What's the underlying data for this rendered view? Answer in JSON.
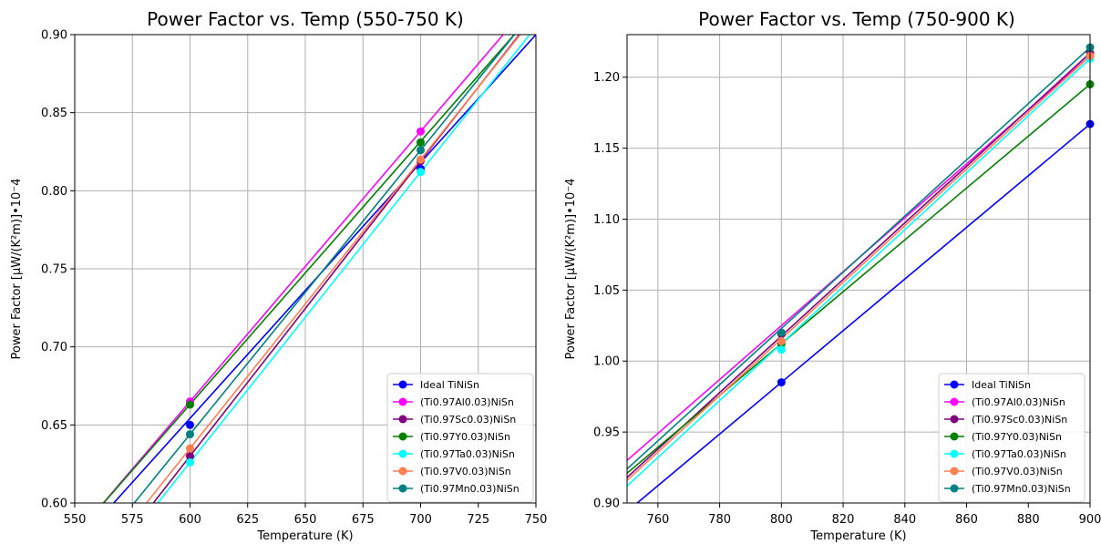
{
  "chart_data": [
    {
      "type": "line",
      "title": "Power Factor vs. Temp (550-750 K)",
      "xlabel": "Temperature (K)",
      "ylabel": "Power Factor [μW/(K²m)]•10⁻4",
      "xlim": [
        550,
        750
      ],
      "ylim": [
        0.6,
        0.9
      ],
      "xticks": [
        "550",
        "575",
        "600",
        "625",
        "650",
        "675",
        "700",
        "725",
        "750"
      ],
      "yticks": [
        "0.60",
        "0.65",
        "0.70",
        "0.75",
        "0.80",
        "0.85",
        "0.90"
      ],
      "grid": true,
      "legend_position": "lower-right",
      "series": [
        {
          "name": "Ideal TiNiSn",
          "color": "#0000ff",
          "points": [
            [
              600,
              0.65
            ],
            [
              700,
              0.814
            ]
          ],
          "line": [
            [
              566.9,
              0.6
            ],
            [
              750,
              0.9
            ]
          ]
        },
        {
          "name": "(Ti0.97Al0.03)NiSn",
          "color": "#ff00ff",
          "points": [
            [
              600,
              0.665
            ],
            [
              700,
              0.838
            ]
          ],
          "line": [
            [
              562.4,
              0.6
            ],
            [
              735.8,
              0.9
            ]
          ]
        },
        {
          "name": "(Ti0.97Sc0.03)NiSn",
          "color": "#800080",
          "points": [
            [
              600,
              0.63
            ],
            [
              700,
              0.819
            ]
          ],
          "line": [
            [
              584.1,
              0.6
            ],
            [
              742.8,
              0.9
            ]
          ]
        },
        {
          "name": "(Ti0.97Y0.03)NiSn",
          "color": "#008000",
          "points": [
            [
              600,
              0.663
            ],
            [
              700,
              0.831
            ]
          ],
          "line": [
            [
              562.5,
              0.6
            ],
            [
              740.6,
              0.9
            ]
          ]
        },
        {
          "name": "(Ti0.97Ta0.03)NiSn",
          "color": "#00ffff",
          "points": [
            [
              600,
              0.626
            ],
            [
              700,
              0.812
            ]
          ],
          "line": [
            [
              586.0,
              0.6
            ],
            [
              747.3,
              0.9
            ]
          ]
        },
        {
          "name": "(Ti0.97V0.03)NiSn",
          "color": "#ff7f50",
          "points": [
            [
              600,
              0.635
            ],
            [
              700,
              0.82
            ]
          ],
          "line": [
            [
              581.1,
              0.6
            ],
            [
              743.2,
              0.9
            ]
          ]
        },
        {
          "name": "(Ti0.97Mn0.03)NiSn",
          "color": "#008080",
          "points": [
            [
              600,
              0.644
            ],
            [
              700,
              0.826
            ]
          ],
          "line": [
            [
              575.8,
              0.6
            ],
            [
              740.7,
              0.9
            ]
          ]
        }
      ]
    },
    {
      "type": "line",
      "title": "Power Factor vs. Temp (750-900 K)",
      "xlabel": "Temperature (K)",
      "ylabel": "Power Factor [μW/(K²m)]•10⁻4",
      "xlim": [
        750,
        900
      ],
      "ylim": [
        0.9,
        1.23
      ],
      "xticks": [
        "760",
        "780",
        "800",
        "820",
        "840",
        "860",
        "880",
        "900"
      ],
      "yticks": [
        "0.90",
        "0.95",
        "1.00",
        "1.05",
        "1.10",
        "1.15",
        "1.20"
      ],
      "grid": true,
      "legend_position": "lower-right",
      "series": [
        {
          "name": "Ideal TiNiSn",
          "color": "#0000ff",
          "points": [
            [
              800,
              0.985
            ],
            [
              900,
              1.167
            ]
          ],
          "line": [
            [
              750,
              0.894
            ],
            [
              900,
              1.167
            ]
          ]
        },
        {
          "name": "(Ti0.97Al0.03)NiSn",
          "color": "#ff00ff",
          "points": [
            [
              800,
              1.02
            ],
            [
              900,
              1.215
            ]
          ],
          "line": [
            [
              750,
              0.93
            ],
            [
              900,
              1.215
            ]
          ]
        },
        {
          "name": "(Ti0.97Sc0.03)NiSn",
          "color": "#800080",
          "points": [
            [
              800,
              1.019
            ],
            [
              900,
              1.217
            ]
          ],
          "line": [
            [
              750,
              0.918
            ],
            [
              900,
              1.217
            ]
          ]
        },
        {
          "name": "(Ti0.97Y0.03)NiSn",
          "color": "#008000",
          "points": [
            [
              800,
              1.012
            ],
            [
              900,
              1.195
            ]
          ],
          "line": [
            [
              750,
              0.921
            ],
            [
              900,
              1.195
            ]
          ]
        },
        {
          "name": "(Ti0.97Ta0.03)NiSn",
          "color": "#00ffff",
          "points": [
            [
              800,
              1.008
            ],
            [
              900,
              1.213
            ]
          ],
          "line": [
            [
              750,
              0.912
            ],
            [
              900,
              1.213
            ]
          ]
        },
        {
          "name": "(Ti0.97V0.03)NiSn",
          "color": "#ff7f50",
          "points": [
            [
              800,
              1.014
            ],
            [
              900,
              1.215
            ]
          ],
          "line": [
            [
              750,
              0.916
            ],
            [
              900,
              1.215
            ]
          ]
        },
        {
          "name": "(Ti0.97Mn0.03)NiSn",
          "color": "#008080",
          "points": [
            [
              800,
              1.02
            ],
            [
              900,
              1.221
            ]
          ],
          "line": [
            [
              750,
              0.924
            ],
            [
              900,
              1.221
            ]
          ]
        }
      ]
    }
  ]
}
